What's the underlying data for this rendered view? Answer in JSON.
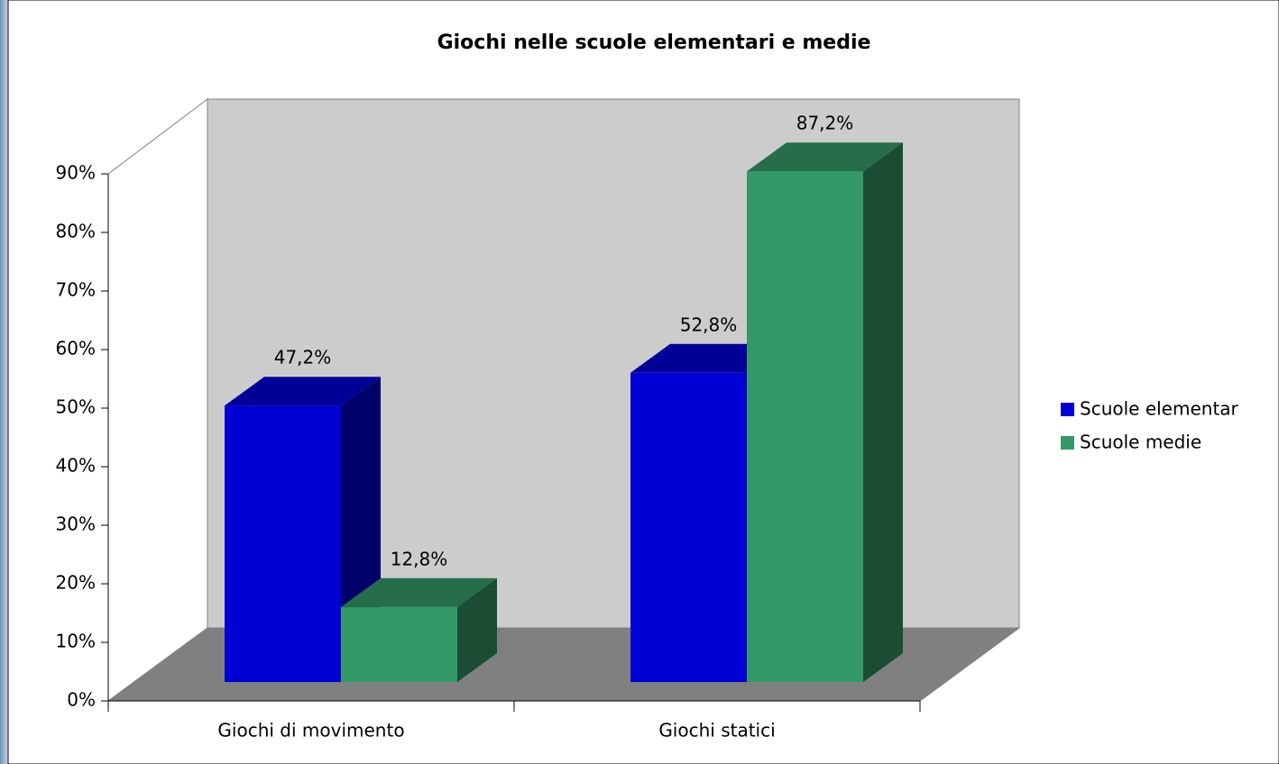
{
  "chart_data": {
    "type": "bar3d",
    "title": "Giochi nelle scuole elementari e medie",
    "categories": [
      "Giochi di movimento",
      "Giochi statici"
    ],
    "series": [
      {
        "name": "Scuole elementar",
        "color": "#0000d4",
        "values": [
          47.2,
          52.8
        ],
        "value_labels": [
          "47,2%",
          "52,8%"
        ]
      },
      {
        "name": "Scuole medie",
        "color": "#339966",
        "values": [
          12.8,
          87.2
        ],
        "value_labels": [
          "12,8%",
          "87,2%"
        ]
      }
    ],
    "ylim": [
      0,
      90
    ],
    "yticks": [
      {
        "value": 0,
        "label": "0%"
      },
      {
        "value": 10,
        "label": "10%"
      },
      {
        "value": 20,
        "label": "20%"
      },
      {
        "value": 30,
        "label": "30%"
      },
      {
        "value": 40,
        "label": "40%"
      },
      {
        "value": 50,
        "label": "50%"
      },
      {
        "value": 60,
        "label": "60%"
      },
      {
        "value": 70,
        "label": "70%"
      },
      {
        "value": 80,
        "label": "80%"
      },
      {
        "value": 90,
        "label": "90%"
      }
    ],
    "grid": false,
    "legend": "right"
  }
}
